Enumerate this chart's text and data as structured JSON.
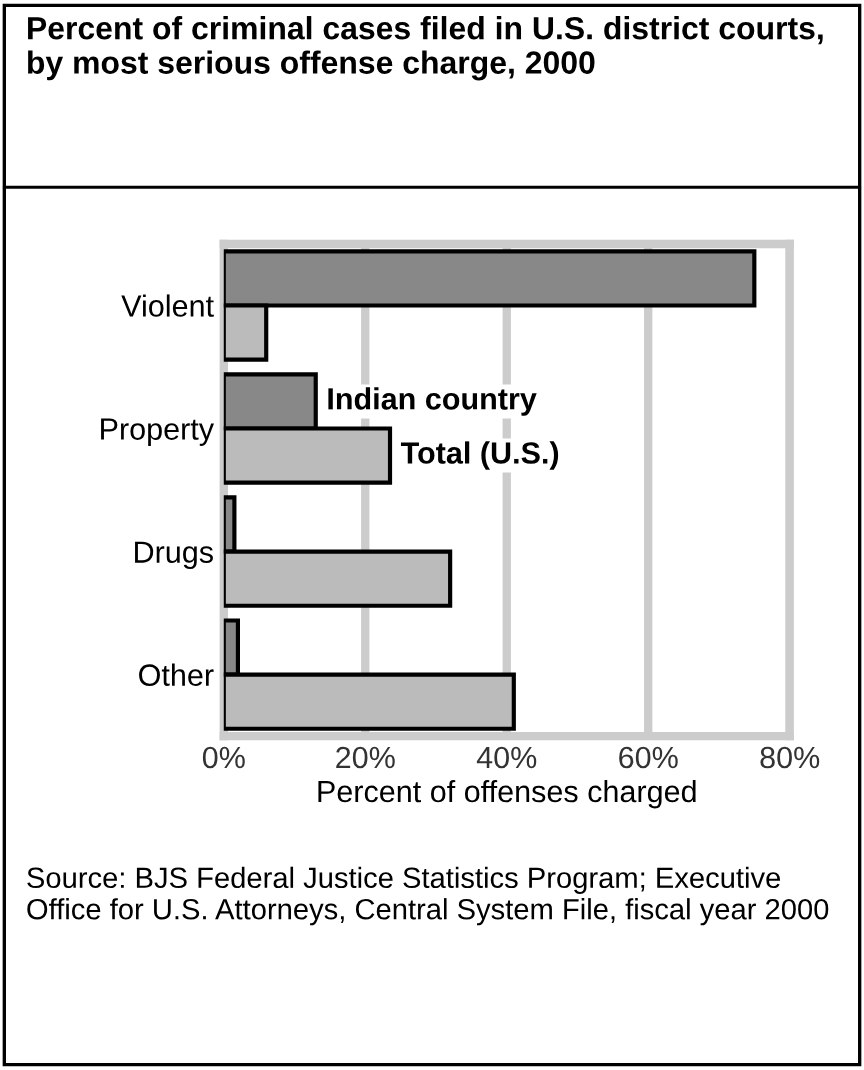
{
  "chart_data": {
    "type": "bar",
    "orientation": "horizontal",
    "title": "Percent of criminal cases filed in U.S. district courts, by most serious offense charge, 2000",
    "categories": [
      "Violent",
      "Property",
      "Drugs",
      "Other"
    ],
    "series": [
      {
        "name": "Indian country",
        "color": "#888888",
        "values": [
          75,
          13,
          1.5,
          2
        ]
      },
      {
        "name": "Total (U.S.)",
        "color": "#bbbbbb",
        "values": [
          6,
          23.5,
          32,
          41
        ]
      }
    ],
    "xlim": [
      0,
      80
    ],
    "xticks": [
      {
        "value": 0,
        "label": "0%"
      },
      {
        "value": 20,
        "label": "20%"
      },
      {
        "value": 40,
        "label": "40%"
      },
      {
        "value": 60,
        "label": "60%"
      },
      {
        "value": 80,
        "label": "80%"
      }
    ],
    "xlabel": "Percent of offenses charged",
    "grid": "x",
    "legend": false,
    "annotations": [
      "Source: BJS Federal Justice Statistics Program; Executive Office for U.S. Attorneys, Central System File, fiscal year 2000"
    ]
  }
}
